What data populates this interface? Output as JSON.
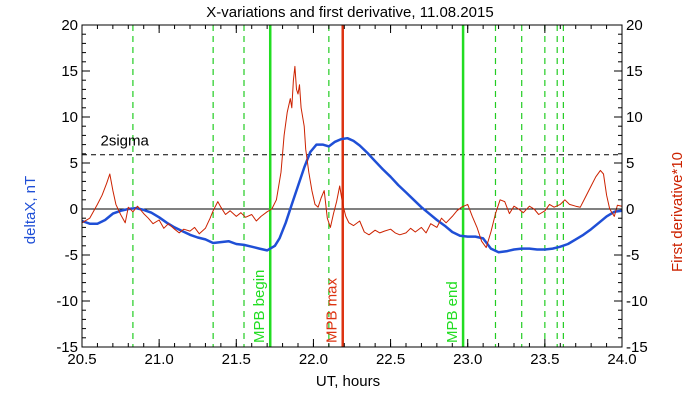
{
  "chart_data": {
    "type": "line",
    "title": "X-variations and first derivative, 11.08.2015",
    "xlabel": "UT, hours",
    "ylabel_left": "deltaX, nT",
    "ylabel_right": "First derivative*10",
    "xlim": [
      20.5,
      24.0
    ],
    "ylim": [
      -15,
      20
    ],
    "xticks": [
      "20.5",
      "21.0",
      "21.5",
      "22.0",
      "22.5",
      "23.0",
      "23.5",
      "24.0"
    ],
    "yticks": [
      "-15",
      "-10",
      "-5",
      "0",
      "5",
      "10",
      "15",
      "20"
    ],
    "colors": {
      "deltaX": "#1f4fd6",
      "derivative": "#cc2200",
      "mpb_begin": "#22dd22",
      "mpb_max": "#dd3311",
      "mpb_end": "#22dd22",
      "dashed_green": "#22cc22"
    },
    "sigma": {
      "label": "2sigma",
      "value": 5.9
    },
    "zero_line": 0,
    "mpb_lines": [
      {
        "name": "MPB begin",
        "x": 21.72,
        "color": "#22dd22"
      },
      {
        "name": "MPB max",
        "x": 22.19,
        "color": "#dd3311"
      },
      {
        "name": "MPB end",
        "x": 22.97,
        "color": "#22dd22"
      }
    ],
    "dashed_verticals": [
      20.83,
      21.35,
      21.55,
      22.1,
      23.18,
      23.35,
      23.5,
      23.58,
      23.62
    ],
    "series": [
      {
        "key": "deltaX",
        "values": [
          [
            20.5,
            -1.3
          ],
          [
            20.55,
            -1.6
          ],
          [
            20.6,
            -1.6
          ],
          [
            20.65,
            -1.2
          ],
          [
            20.7,
            -0.5
          ],
          [
            20.75,
            -0.2
          ],
          [
            20.8,
            0.0
          ],
          [
            20.85,
            0.1
          ],
          [
            20.9,
            -0.1
          ],
          [
            20.95,
            -0.4
          ],
          [
            21.0,
            -0.9
          ],
          [
            21.05,
            -1.5
          ],
          [
            21.1,
            -2.0
          ],
          [
            21.15,
            -2.4
          ],
          [
            21.2,
            -2.8
          ],
          [
            21.25,
            -3.1
          ],
          [
            21.3,
            -3.3
          ],
          [
            21.35,
            -3.7
          ],
          [
            21.4,
            -3.6
          ],
          [
            21.45,
            -3.5
          ],
          [
            21.5,
            -3.8
          ],
          [
            21.55,
            -3.9
          ],
          [
            21.6,
            -4.1
          ],
          [
            21.65,
            -4.3
          ],
          [
            21.7,
            -4.5
          ],
          [
            21.75,
            -4.0
          ],
          [
            21.78,
            -3.2
          ],
          [
            21.82,
            -1.5
          ],
          [
            21.86,
            0.5
          ],
          [
            21.9,
            2.5
          ],
          [
            21.94,
            4.5
          ],
          [
            21.98,
            6.2
          ],
          [
            22.02,
            7.0
          ],
          [
            22.06,
            7.0
          ],
          [
            22.1,
            6.8
          ],
          [
            22.14,
            7.3
          ],
          [
            22.18,
            7.6
          ],
          [
            22.22,
            7.7
          ],
          [
            22.26,
            7.4
          ],
          [
            22.3,
            6.9
          ],
          [
            22.35,
            6.1
          ],
          [
            22.4,
            5.2
          ],
          [
            22.45,
            4.3
          ],
          [
            22.5,
            3.5
          ],
          [
            22.55,
            2.6
          ],
          [
            22.6,
            1.8
          ],
          [
            22.65,
            1.0
          ],
          [
            22.7,
            0.2
          ],
          [
            22.75,
            -0.5
          ],
          [
            22.8,
            -1.2
          ],
          [
            22.85,
            -1.8
          ],
          [
            22.9,
            -2.5
          ],
          [
            22.95,
            -2.9
          ],
          [
            23.0,
            -3.0
          ],
          [
            23.05,
            -3.0
          ],
          [
            23.1,
            -3.2
          ],
          [
            23.15,
            -4.3
          ],
          [
            23.2,
            -4.7
          ],
          [
            23.25,
            -4.6
          ],
          [
            23.3,
            -4.4
          ],
          [
            23.35,
            -4.3
          ],
          [
            23.4,
            -4.3
          ],
          [
            23.45,
            -4.4
          ],
          [
            23.5,
            -4.4
          ],
          [
            23.55,
            -4.3
          ],
          [
            23.6,
            -4.1
          ],
          [
            23.65,
            -3.8
          ],
          [
            23.7,
            -3.3
          ],
          [
            23.75,
            -2.8
          ],
          [
            23.8,
            -2.2
          ],
          [
            23.85,
            -1.5
          ],
          [
            23.9,
            -0.8
          ],
          [
            23.95,
            -0.3
          ],
          [
            24.0,
            -0.2
          ]
        ]
      },
      {
        "key": "derivative",
        "values": [
          [
            20.5,
            -1.5
          ],
          [
            20.55,
            -1.0
          ],
          [
            20.6,
            0.5
          ],
          [
            20.63,
            1.5
          ],
          [
            20.66,
            2.8
          ],
          [
            20.68,
            3.8
          ],
          [
            20.7,
            2.0
          ],
          [
            20.72,
            0.5
          ],
          [
            20.75,
            -0.6
          ],
          [
            20.78,
            -1.5
          ],
          [
            20.8,
            0.2
          ],
          [
            20.83,
            -0.3
          ],
          [
            20.86,
            0.3
          ],
          [
            20.9,
            -0.5
          ],
          [
            20.93,
            -1.0
          ],
          [
            20.96,
            -1.6
          ],
          [
            21.0,
            -1.2
          ],
          [
            21.03,
            -2.1
          ],
          [
            21.06,
            -1.6
          ],
          [
            21.1,
            -2.2
          ],
          [
            21.13,
            -2.6
          ],
          [
            21.16,
            -2.2
          ],
          [
            21.2,
            -2.4
          ],
          [
            21.23,
            -2.0
          ],
          [
            21.26,
            -2.7
          ],
          [
            21.3,
            -2.1
          ],
          [
            21.33,
            -1.0
          ],
          [
            21.35,
            -0.2
          ],
          [
            21.38,
            0.8
          ],
          [
            21.4,
            0.2
          ],
          [
            21.43,
            -0.6
          ],
          [
            21.46,
            -0.2
          ],
          [
            21.5,
            -0.8
          ],
          [
            21.53,
            -0.4
          ],
          [
            21.56,
            -0.9
          ],
          [
            21.6,
            -0.6
          ],
          [
            21.63,
            -1.3
          ],
          [
            21.66,
            -0.8
          ],
          [
            21.7,
            -0.3
          ],
          [
            21.73,
            0.0
          ],
          [
            21.76,
            1.0
          ],
          [
            21.79,
            4.0
          ],
          [
            21.81,
            8.0
          ],
          [
            21.83,
            10.5
          ],
          [
            21.85,
            12.0
          ],
          [
            21.86,
            11.0
          ],
          [
            21.87,
            14.0
          ],
          [
            21.88,
            15.5
          ],
          [
            21.89,
            13.0
          ],
          [
            21.9,
            12.5
          ],
          [
            21.91,
            13.5
          ],
          [
            21.92,
            11.0
          ],
          [
            21.94,
            9.0
          ],
          [
            21.95,
            6.5
          ],
          [
            21.97,
            4.0
          ],
          [
            21.99,
            2.0
          ],
          [
            22.01,
            0.5
          ],
          [
            22.03,
            0.2
          ],
          [
            22.05,
            1.2
          ],
          [
            22.07,
            2.0
          ],
          [
            22.09,
            -1.0
          ],
          [
            22.11,
            -2.0
          ],
          [
            22.13,
            -0.5
          ],
          [
            22.15,
            0.8
          ],
          [
            22.17,
            2.5
          ],
          [
            22.19,
            0.5
          ],
          [
            22.21,
            -0.8
          ],
          [
            22.23,
            -1.5
          ],
          [
            22.26,
            -1.8
          ],
          [
            22.3,
            -1.3
          ],
          [
            22.33,
            -2.5
          ],
          [
            22.36,
            -2.8
          ],
          [
            22.4,
            -2.3
          ],
          [
            22.43,
            -2.6
          ],
          [
            22.46,
            -2.4
          ],
          [
            22.5,
            -2.2
          ],
          [
            22.53,
            -2.6
          ],
          [
            22.56,
            -2.8
          ],
          [
            22.6,
            -2.6
          ],
          [
            22.63,
            -2.1
          ],
          [
            22.66,
            -2.5
          ],
          [
            22.7,
            -2.0
          ],
          [
            22.73,
            -2.6
          ],
          [
            22.76,
            -1.6
          ],
          [
            22.8,
            -2.0
          ],
          [
            22.83,
            -1.0
          ],
          [
            22.86,
            -1.5
          ],
          [
            22.9,
            -0.8
          ],
          [
            22.93,
            -0.2
          ],
          [
            22.96,
            0.2
          ],
          [
            23.0,
            0.5
          ],
          [
            23.03,
            -0.8
          ],
          [
            23.06,
            -2.0
          ],
          [
            23.09,
            -3.5
          ],
          [
            23.12,
            -4.2
          ],
          [
            23.15,
            -2.5
          ],
          [
            23.18,
            -0.5
          ],
          [
            23.21,
            1.0
          ],
          [
            23.24,
            0.8
          ],
          [
            23.27,
            -0.5
          ],
          [
            23.3,
            0.3
          ],
          [
            23.33,
            0.0
          ],
          [
            23.36,
            -0.4
          ],
          [
            23.4,
            0.3
          ],
          [
            23.43,
            0.0
          ],
          [
            23.46,
            -0.6
          ],
          [
            23.5,
            -0.2
          ],
          [
            23.53,
            0.5
          ],
          [
            23.56,
            0.2
          ],
          [
            23.6,
            0.5
          ],
          [
            23.63,
            1.0
          ],
          [
            23.66,
            0.5
          ],
          [
            23.7,
            0.3
          ],
          [
            23.73,
            0.2
          ],
          [
            23.76,
            1.2
          ],
          [
            23.8,
            2.5
          ],
          [
            23.83,
            3.5
          ],
          [
            23.86,
            4.2
          ],
          [
            23.88,
            3.8
          ],
          [
            23.9,
            1.5
          ],
          [
            23.92,
            0.0
          ],
          [
            23.95,
            -0.8
          ],
          [
            23.97,
            0.4
          ],
          [
            24.0,
            0.3
          ]
        ]
      }
    ]
  }
}
